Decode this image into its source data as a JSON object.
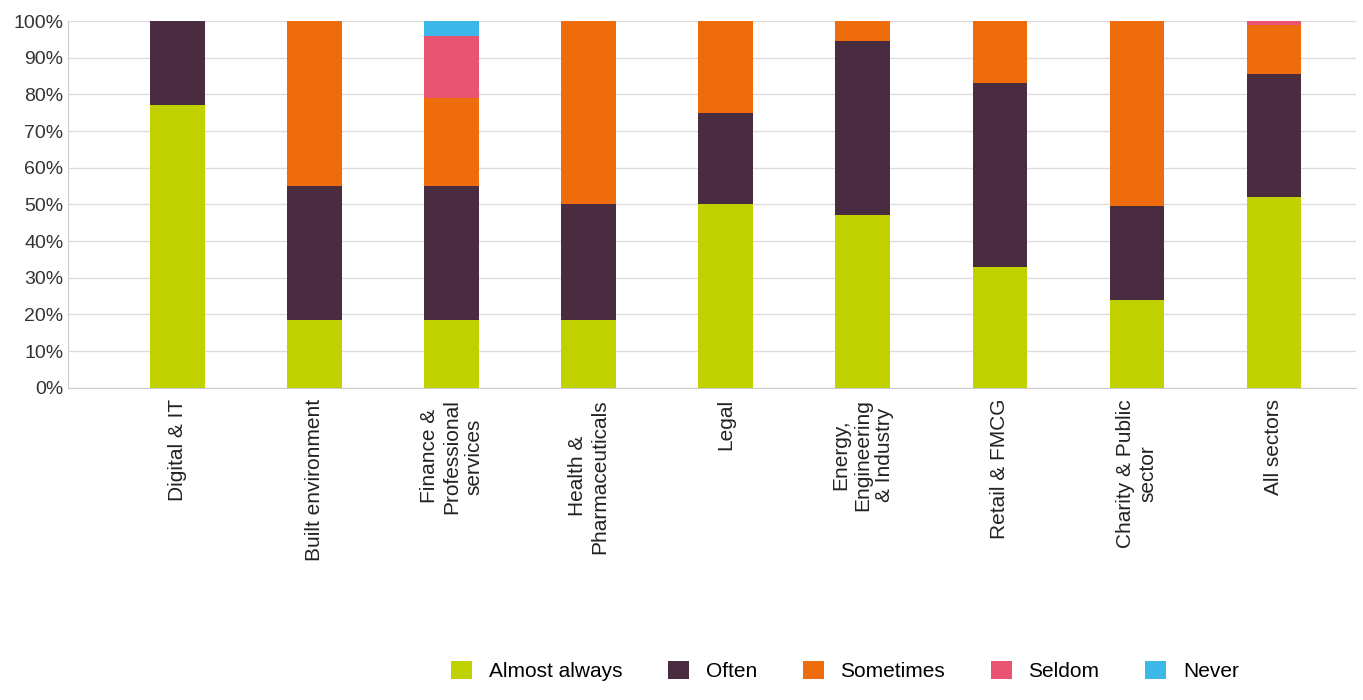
{
  "chart_data": {
    "type": "bar",
    "stacked": true,
    "grid": true,
    "legend": "lower center",
    "categories": [
      "Digital & IT",
      "Built environment",
      "Finance &\nProfessional\nservices",
      "Health &\nPharmaceuticals",
      "Legal",
      "Energy,\nEngineering\n& Industry",
      "Retail & FMCG",
      "Charity & Public\nsector",
      "All sectors"
    ],
    "series": [
      {
        "name": "Almost always",
        "color": "#bfd200",
        "values": [
          77,
          18.5,
          18.5,
          18.5,
          50,
          47,
          33,
          24,
          52
        ]
      },
      {
        "name": "Often",
        "color": "#4a2c40",
        "values": [
          23,
          36.5,
          36.5,
          31.5,
          25,
          47.5,
          50,
          25.5,
          33.5
        ]
      },
      {
        "name": "Sometimes",
        "color": "#ee6c0c",
        "values": [
          0,
          45,
          24,
          50,
          25,
          5.5,
          17,
          50.5,
          13.5
        ]
      },
      {
        "name": "Seldom",
        "color": "#e95473",
        "values": [
          0,
          0,
          17,
          0,
          0,
          0,
          0,
          0,
          1
        ]
      },
      {
        "name": "Never",
        "color": "#3bb8e8",
        "values": [
          0,
          0,
          4,
          0,
          0,
          0,
          0,
          0,
          0
        ]
      }
    ],
    "ylim": [
      0,
      100
    ],
    "yticks": [
      {
        "value": 0,
        "label": "0%"
      },
      {
        "value": 10,
        "label": "10%"
      },
      {
        "value": 20,
        "label": "20%"
      },
      {
        "value": 30,
        "label": "30%"
      },
      {
        "value": 40,
        "label": "40%"
      },
      {
        "value": 50,
        "label": "50%"
      },
      {
        "value": 60,
        "label": "60%"
      },
      {
        "value": 70,
        "label": "70%"
      },
      {
        "value": 80,
        "label": "80%"
      },
      {
        "value": 90,
        "label": "90%"
      },
      {
        "value": 100,
        "label": "100%"
      }
    ]
  }
}
